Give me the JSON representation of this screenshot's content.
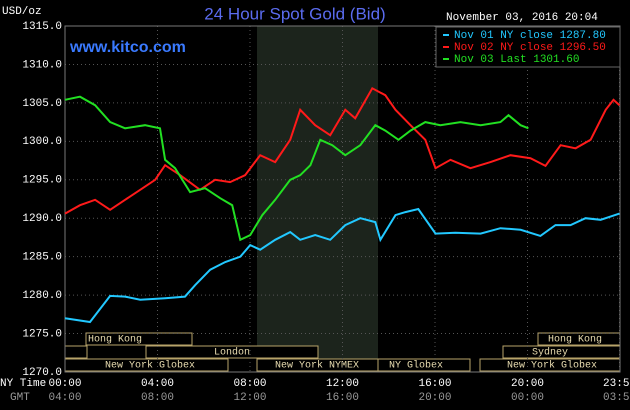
{
  "chart_data": {
    "type": "line",
    "title": "24 Hour Spot Gold (Bid)",
    "unit_label": "USD/oz",
    "website": "www.kitco.com",
    "timestamp": "November 03, 2016 20:04",
    "x_axis_label": "NY Time",
    "x2_axis_label": "GMT",
    "xlim": [
      0,
      24
    ],
    "ylim": [
      1270,
      1315
    ],
    "xticks": [
      {
        "value": 0,
        "label": "00:00"
      },
      {
        "value": 4,
        "label": "04:00"
      },
      {
        "value": 8,
        "label": "08:00"
      },
      {
        "value": 12,
        "label": "12:00"
      },
      {
        "value": 16,
        "label": "16:00"
      },
      {
        "value": 20,
        "label": "20:00"
      },
      {
        "value": 23.98,
        "label": "23:59"
      }
    ],
    "x2tick_labels": [
      "04:00",
      "08:00",
      "12:00",
      "16:00",
      "20:00",
      "00:00",
      "03:59"
    ],
    "yticks": [
      {
        "value": 1270,
        "label": "1270.0"
      },
      {
        "value": 1275,
        "label": "1275.0"
      },
      {
        "value": 1280,
        "label": "1280.0"
      },
      {
        "value": 1285,
        "label": "1285.0"
      },
      {
        "value": 1290,
        "label": "1290.0"
      },
      {
        "value": 1295,
        "label": "1295.0"
      },
      {
        "value": 1300,
        "label": "1300.0"
      },
      {
        "value": 1305,
        "label": "1305.0"
      },
      {
        "value": 1310,
        "label": "1310.0"
      },
      {
        "value": 1315,
        "label": "1315.0"
      }
    ],
    "grid": true,
    "sessions": [
      "Hong Kong",
      "London",
      "New York Globex",
      "New York NYMEX",
      "NY Globex",
      "Hong Kong",
      "Sydney",
      "New York Globex"
    ],
    "series": [
      {
        "name": "Nov 01 NY close 1287.80",
        "color": "#22c8ff",
        "x": [
          0,
          1.08,
          1.95,
          2.6,
          3.25,
          4.33,
          5.19,
          5.63,
          6.28,
          6.93,
          7.58,
          8.01,
          8.44,
          9.09,
          9.74,
          10.17,
          10.82,
          11.47,
          12.12,
          12.77,
          13.42,
          13.64,
          14.29,
          14.72,
          15.28,
          16.02,
          16.88,
          17.97,
          18.83,
          19.7,
          20.56,
          21.21,
          21.86,
          22.51,
          23.16,
          23.98
        ],
        "values": [
          1277.0,
          1276.5,
          1279.9,
          1279.8,
          1279.4,
          1279.6,
          1279.8,
          1281.3,
          1283.3,
          1284.3,
          1285.0,
          1286.5,
          1285.9,
          1287.2,
          1288.2,
          1287.2,
          1287.8,
          1287.2,
          1289.1,
          1290.0,
          1289.5,
          1287.2,
          1290.4,
          1290.8,
          1291.2,
          1288.0,
          1288.1,
          1288.0,
          1288.7,
          1288.5,
          1287.7,
          1289.1,
          1289.1,
          1290.0,
          1289.8,
          1290.6
        ]
      },
      {
        "name": "Nov 02 NY close 1296.50",
        "color": "#ff1a1a",
        "x": [
          0,
          0.65,
          1.3,
          1.95,
          2.6,
          3.25,
          3.9,
          4.33,
          4.98,
          5.84,
          6.49,
          7.14,
          7.79,
          8.44,
          9.09,
          9.74,
          10.17,
          10.82,
          11.47,
          12.12,
          12.55,
          13.29,
          13.85,
          14.29,
          14.94,
          15.58,
          16.02,
          16.67,
          17.53,
          18.4,
          19.26,
          20.13,
          20.78,
          21.43,
          22.08,
          22.73,
          23.38,
          23.72,
          23.98
        ],
        "values": [
          1290.6,
          1291.7,
          1292.4,
          1291.1,
          1292.4,
          1293.7,
          1295.0,
          1296.9,
          1295.6,
          1293.7,
          1295.0,
          1294.7,
          1295.6,
          1298.2,
          1297.3,
          1300.2,
          1304.1,
          1302.1,
          1300.8,
          1304.1,
          1303.0,
          1306.9,
          1306.0,
          1304.1,
          1302.1,
          1300.2,
          1296.5,
          1297.6,
          1296.5,
          1297.3,
          1298.2,
          1297.8,
          1296.8,
          1299.5,
          1299.1,
          1300.2,
          1304.1,
          1305.4,
          1304.7
        ]
      },
      {
        "name": "Nov 03 Last 1301.60",
        "color": "#22e022",
        "x": [
          0,
          0.65,
          1.3,
          1.95,
          2.6,
          3.46,
          4.11,
          4.33,
          4.76,
          5.41,
          6.06,
          6.71,
          7.23,
          7.58,
          8.01,
          8.53,
          9.09,
          9.74,
          10.17,
          10.61,
          11.04,
          11.56,
          12.12,
          12.77,
          13.42,
          13.85,
          14.42,
          14.94,
          15.58,
          16.23,
          17.1,
          17.97,
          18.83,
          19.18,
          19.7,
          20.04
        ],
        "values": [
          1305.4,
          1305.8,
          1304.7,
          1302.5,
          1301.7,
          1302.1,
          1301.7,
          1297.6,
          1296.5,
          1293.4,
          1293.9,
          1292.6,
          1291.7,
          1287.2,
          1287.8,
          1290.4,
          1292.4,
          1295.0,
          1295.6,
          1296.9,
          1300.2,
          1299.5,
          1298.2,
          1299.5,
          1302.1,
          1301.4,
          1300.2,
          1301.4,
          1302.5,
          1302.1,
          1302.5,
          1302.1,
          1302.5,
          1303.4,
          1302.1,
          1301.7
        ]
      }
    ]
  }
}
